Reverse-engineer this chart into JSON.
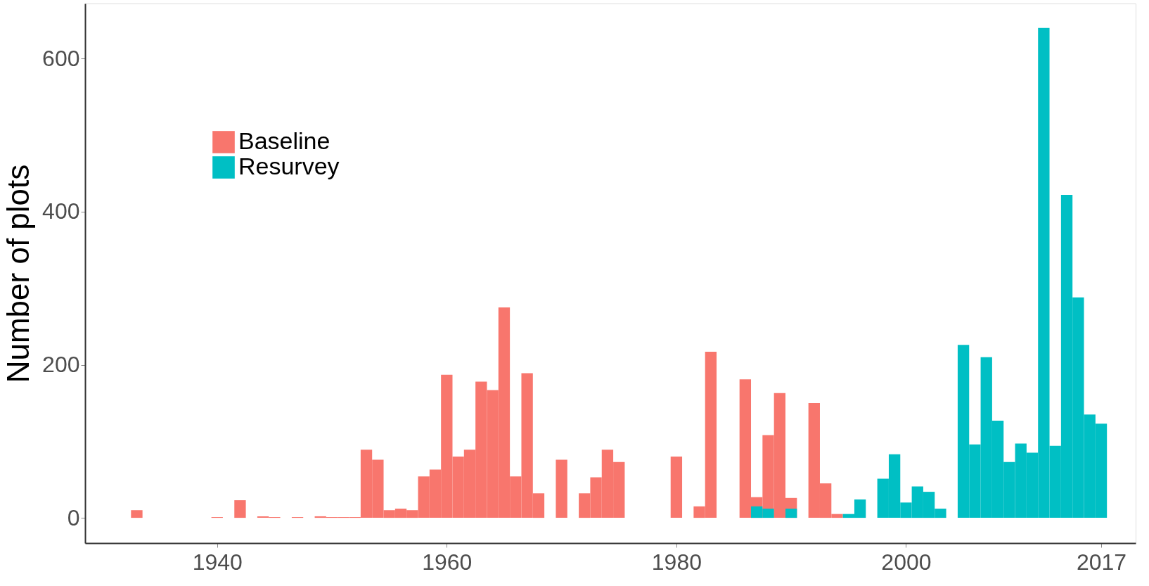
{
  "chart_data": {
    "type": "histogram",
    "ylabel": "Number of plots",
    "bins": [
      1932.5,
      1933.5,
      1934.5,
      1935.5,
      1936.5,
      1937.5,
      1938.5,
      1939.5,
      1940.5,
      1941.5,
      1942.5,
      1943.5,
      1944.5,
      1945.5,
      1946.5,
      1947.5,
      1948.5,
      1949.5,
      1950.5,
      1951.5,
      1952.5,
      1953.5,
      1954.5,
      1955.5,
      1956.5,
      1957.5,
      1958.5,
      1959.5,
      1960.5,
      1961.5,
      1962.5,
      1963.5,
      1964.5,
      1965.5,
      1966.5,
      1967.5,
      1968.5,
      1969.5,
      1970.5,
      1971.5,
      1972.5,
      1973.5,
      1974.5,
      1975.5,
      1976.5,
      1977.5,
      1978.5,
      1979.5,
      1980.5,
      1981.5,
      1982.5,
      1983.5,
      1984.5,
      1985.5,
      1986.5,
      1987.5,
      1988.5,
      1989.5,
      1990.5,
      1991.5,
      1992.5,
      1993.5,
      1994.5,
      1995.5,
      1996.5,
      1997.5,
      1998.5,
      1999.5,
      2000.5,
      2001.5,
      2002.5,
      2003.5,
      2004.5,
      2005.5,
      2006.5,
      2007.5,
      2008.5,
      2009.5,
      2010.5,
      2011.5,
      2012.5,
      2013.5,
      2014.5,
      2015.5,
      2016.5,
      2017.5
    ],
    "series": [
      {
        "name": "Baseline",
        "color": "#f8766d",
        "values": [
          10,
          null,
          null,
          null,
          null,
          null,
          null,
          1,
          null,
          23,
          null,
          2,
          1,
          null,
          1,
          null,
          2,
          1,
          1,
          1,
          89,
          76,
          10,
          12,
          10,
          54,
          63,
          187,
          80,
          89,
          178,
          167,
          275,
          54,
          189,
          32,
          null,
          76,
          null,
          32,
          53,
          89,
          73,
          null,
          null,
          null,
          null,
          80,
          null,
          15,
          217,
          null,
          null,
          181,
          27,
          108,
          163,
          26,
          null,
          150,
          45,
          5,
          null,
          null,
          null,
          null,
          null,
          null,
          null,
          null,
          null,
          null,
          null,
          null,
          null,
          null,
          null,
          null,
          null,
          null,
          null,
          null,
          null,
          null,
          null
        ]
      },
      {
        "name": "Resurvey",
        "color": "#00bfc4",
        "values": [
          null,
          null,
          null,
          null,
          null,
          null,
          null,
          null,
          null,
          null,
          null,
          null,
          null,
          null,
          null,
          null,
          null,
          null,
          null,
          null,
          null,
          null,
          null,
          null,
          null,
          null,
          null,
          null,
          null,
          null,
          null,
          null,
          null,
          null,
          null,
          null,
          null,
          null,
          null,
          null,
          null,
          null,
          null,
          null,
          null,
          null,
          null,
          null,
          null,
          null,
          null,
          null,
          null,
          null,
          15,
          12,
          null,
          12,
          null,
          null,
          null,
          null,
          5,
          24,
          null,
          51,
          83,
          20,
          41,
          34,
          12,
          null,
          226,
          96,
          210,
          127,
          73,
          97,
          85,
          640,
          94,
          422,
          288,
          135,
          123
        ]
      }
    ],
    "xlim": [
      1928.5,
      2020
    ],
    "xticks": [
      1940,
      1960,
      1980,
      2000,
      2017
    ],
    "ylim": [
      -33,
      672
    ],
    "yticks": [
      0,
      200,
      400,
      600
    ],
    "grid": false,
    "legend": "top left"
  }
}
